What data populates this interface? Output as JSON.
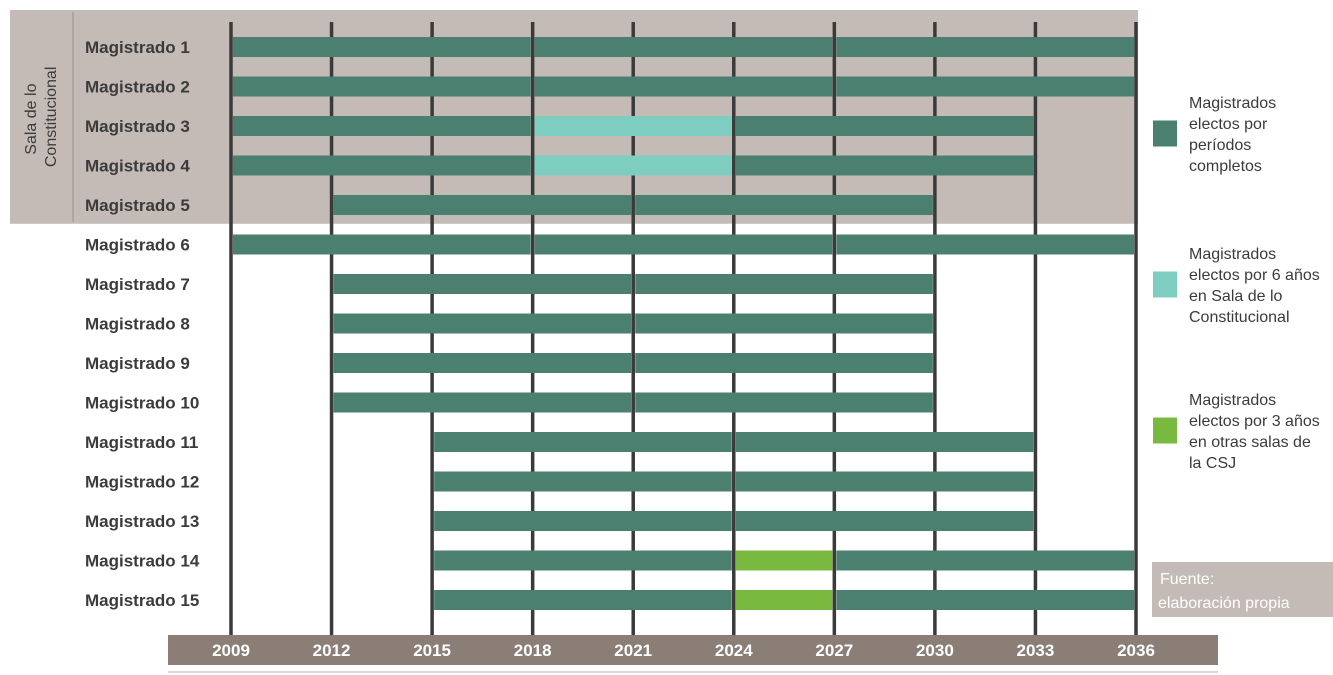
{
  "chart_data": {
    "type": "gantt",
    "group_label": [
      "Sala de lo",
      "Constitucional"
    ],
    "x_ticks": [
      2009,
      2012,
      2015,
      2018,
      2021,
      2024,
      2027,
      2030,
      2033,
      2036
    ],
    "xlim": [
      2009,
      2036
    ],
    "categories": [
      "Magistrado 1",
      "Magistrado 2",
      "Magistrado 3",
      "Magistrado 4",
      "Magistrado 5",
      "Magistrado 6",
      "Magistrado 7",
      "Magistrado 8",
      "Magistrado 9",
      "Magistrado 10",
      "Magistrado 11",
      "Magistrado 12",
      "Magistrado 13",
      "Magistrado 14",
      "Magistrado 15"
    ],
    "group_rows": 5,
    "series": [
      {
        "key": "full",
        "legend": [
          "Magistrados",
          "electos por",
          "períodos",
          "completos"
        ],
        "color": "#4b7f6f"
      },
      {
        "key": "six",
        "legend": [
          "Magistrados",
          "electos por 6 años",
          "en Sala de lo",
          "Constitucional"
        ],
        "color": "#7ecdc1"
      },
      {
        "key": "three",
        "legend": [
          "Magistrados",
          "electos por 3 años",
          "en otras salas de",
          "la CSJ"
        ],
        "color": "#7ab940"
      }
    ],
    "terms": [
      [
        [
          2009,
          2018,
          "full"
        ],
        [
          2018,
          2027,
          "full"
        ],
        [
          2027,
          2036,
          "full"
        ]
      ],
      [
        [
          2009,
          2018,
          "full"
        ],
        [
          2018,
          2027,
          "full"
        ],
        [
          2027,
          2036,
          "full"
        ]
      ],
      [
        [
          2009,
          2018,
          "full"
        ],
        [
          2018,
          2024,
          "six"
        ],
        [
          2024,
          2033,
          "full"
        ]
      ],
      [
        [
          2009,
          2018,
          "full"
        ],
        [
          2018,
          2024,
          "six"
        ],
        [
          2024,
          2033,
          "full"
        ]
      ],
      [
        [
          2012,
          2021,
          "full"
        ],
        [
          2021,
          2030,
          "full"
        ]
      ],
      [
        [
          2009,
          2018,
          "full"
        ],
        [
          2018,
          2027,
          "full"
        ],
        [
          2027,
          2036,
          "full"
        ]
      ],
      [
        [
          2012,
          2021,
          "full"
        ],
        [
          2021,
          2030,
          "full"
        ]
      ],
      [
        [
          2012,
          2021,
          "full"
        ],
        [
          2021,
          2030,
          "full"
        ]
      ],
      [
        [
          2012,
          2021,
          "full"
        ],
        [
          2021,
          2030,
          "full"
        ]
      ],
      [
        [
          2012,
          2021,
          "full"
        ],
        [
          2021,
          2030,
          "full"
        ]
      ],
      [
        [
          2015,
          2024,
          "full"
        ],
        [
          2024,
          2033,
          "full"
        ]
      ],
      [
        [
          2015,
          2024,
          "full"
        ],
        [
          2024,
          2033,
          "full"
        ]
      ],
      [
        [
          2015,
          2024,
          "full"
        ],
        [
          2024,
          2033,
          "full"
        ]
      ],
      [
        [
          2015,
          2024,
          "full"
        ],
        [
          2024,
          2027,
          "three"
        ],
        [
          2027,
          2036,
          "full"
        ]
      ],
      [
        [
          2015,
          2024,
          "full"
        ],
        [
          2024,
          2027,
          "three"
        ],
        [
          2027,
          2036,
          "full"
        ]
      ]
    ],
    "source_note": [
      "Fuente:",
      "elaboración propia"
    ],
    "colors": {
      "group_band": "#c4bbb7",
      "axis_band": "#8a7e77",
      "gridline": "#3a3a3a",
      "source_box": "#c4bbb7"
    }
  }
}
